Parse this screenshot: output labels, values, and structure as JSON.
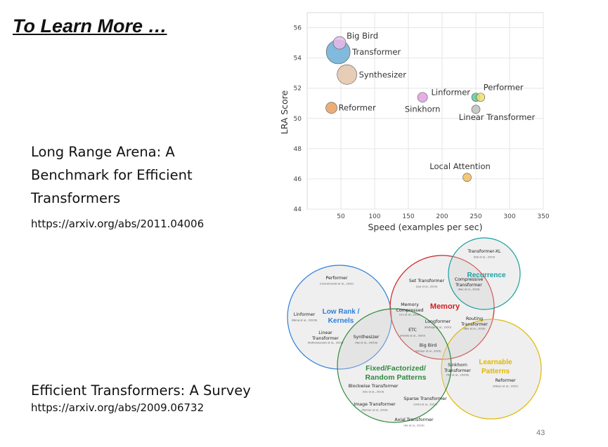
{
  "slide": {
    "title": "To Learn More …",
    "papers": [
      {
        "title": "Long Range Arena: A Benchmark for Efficient Transformers",
        "url": "https://arxiv.org/abs/2011.04006"
      },
      {
        "title": "Efficient Transformers: A Survey",
        "url": "https://arxiv.org/abs/2009.06732"
      }
    ],
    "page_number": "43"
  },
  "chart_data": {
    "type": "scatter",
    "xlabel": "Speed (examples per sec)",
    "ylabel": "LRA Score",
    "xlim": [
      0,
      350
    ],
    "ylim": [
      44,
      57
    ],
    "x_ticks": [
      "50",
      "100",
      "150",
      "200",
      "250",
      "300",
      "350"
    ],
    "y_ticks": [
      "44",
      "46",
      "48",
      "50",
      "52",
      "54",
      "56"
    ],
    "grid": true,
    "points": [
      {
        "label": "Big Bird",
        "x": 48,
        "y": 55.0,
        "size": 9,
        "color": "#e8b8e8"
      },
      {
        "label": "Transformer",
        "x": 46,
        "y": 54.4,
        "size": 17,
        "color": "#6baed6"
      },
      {
        "label": "Synthesizer",
        "x": 59,
        "y": 52.9,
        "size": 14,
        "color": "#e3c4a8"
      },
      {
        "label": "Reformer",
        "x": 36,
        "y": 50.7,
        "size": 8,
        "color": "#e8a060"
      },
      {
        "label": "Sinkhorn",
        "x": 171,
        "y": 51.4,
        "size": 7,
        "color": "#e0a0e0"
      },
      {
        "label": "Linformer",
        "x": 250,
        "y": 51.4,
        "size": 6,
        "color": "#60c8a0"
      },
      {
        "label": "Performer",
        "x": 257,
        "y": 51.4,
        "size": 6,
        "color": "#f0e070"
      },
      {
        "label": "Linear Transformer",
        "x": 250,
        "y": 50.6,
        "size": 6,
        "color": "#c0c0c0"
      },
      {
        "label": "Local Attention",
        "x": 237,
        "y": 46.1,
        "size": 6,
        "color": "#f0c060"
      }
    ]
  },
  "venn": {
    "groups": [
      {
        "title": "Low Rank / Kernels",
        "color": "#2e7fd9"
      },
      {
        "title": "Memory",
        "color": "#d02020"
      },
      {
        "title": "Recurrence",
        "color": "#1aa0a0"
      },
      {
        "title": "Learnable Patterns",
        "color": "#e0b800"
      },
      {
        "title": "Fixed/Factorized/ Random Patterns",
        "color": "#2e8b3e"
      }
    ],
    "models": [
      {
        "name": "Performer",
        "ref": "(Choromanski et al., 2020)"
      },
      {
        "name": "Linformer",
        "ref": "(Wang et al., 2020b)"
      },
      {
        "name": "Linear Transformer",
        "ref": "(Katharopoulos et al., 2020)"
      },
      {
        "name": "Synthesizer",
        "ref": "(Tay et al., 2020a)"
      },
      {
        "name": "Set Transformer",
        "ref": "(Lee et al., 2019)"
      },
      {
        "name": "Memory Compressed",
        "ref": "(Liu et al., 2018)"
      },
      {
        "name": "ETC",
        "ref": "(Ainslie et al., 2020)"
      },
      {
        "name": "Longformer",
        "ref": "(Beltagy et al., 2020)"
      },
      {
        "name": "Big Bird",
        "ref": "(Zaheer et al., 2020)"
      },
      {
        "name": "Compressive Transformer",
        "ref": "(Rae et al., 2018)"
      },
      {
        "name": "Transformer-XL",
        "ref": "(Dai et al., 2019)"
      },
      {
        "name": "Routing Transformer",
        "ref": "(Roy et al., 2020)"
      },
      {
        "name": "Sinkhorn Transformer",
        "ref": "(Tay et al., 2020b)"
      },
      {
        "name": "Reformer",
        "ref": "(Kitaev et al., 2020)"
      },
      {
        "name": "Blockwise Transformer",
        "ref": "(Qiu et al., 2019)"
      },
      {
        "name": "Sparse Transformer",
        "ref": "(Child et al., 2019)"
      },
      {
        "name": "Image Transformer",
        "ref": "(Parmar et al., 2018)"
      },
      {
        "name": "Axial Transformer",
        "ref": "(Ho et al., 2019)"
      }
    ]
  }
}
